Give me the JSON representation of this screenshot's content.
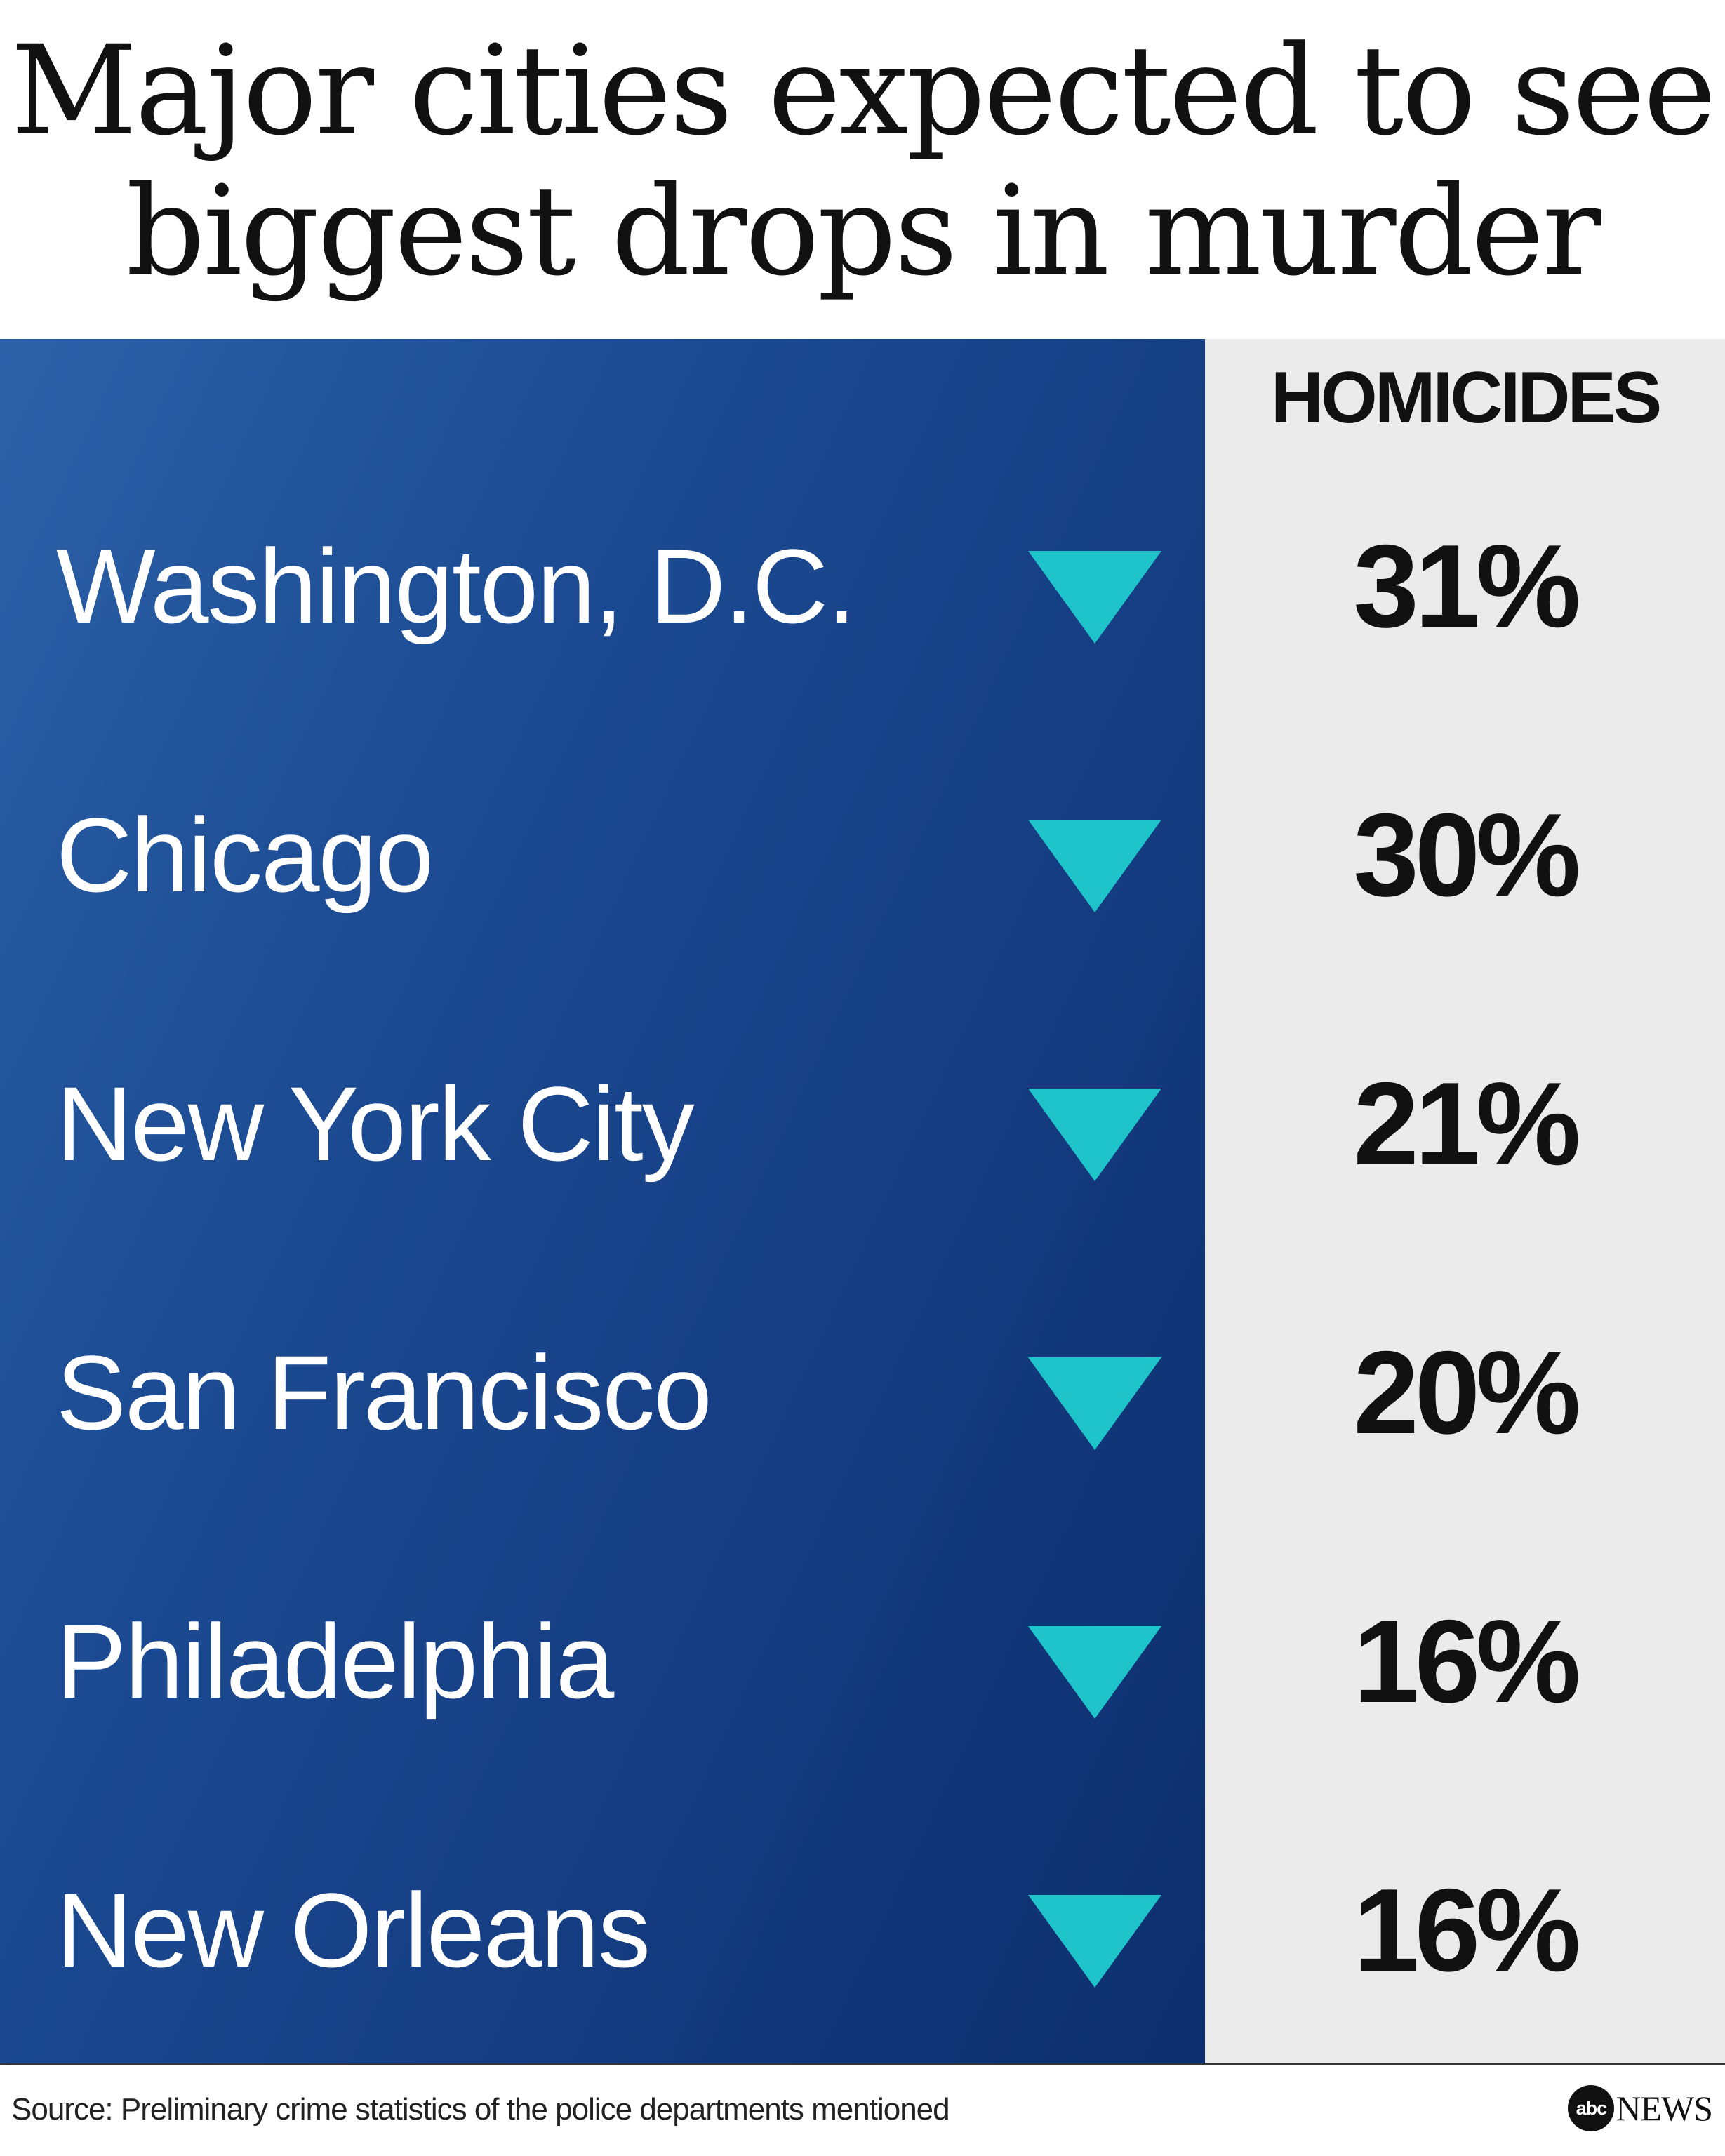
{
  "title_lines": [
    "Major cities expected to see",
    "biggest drops in murder"
  ],
  "column_header": "HOMICIDES",
  "colors": {
    "panel_blue": "#1d4d95",
    "panel_grey": "#ebebeb",
    "arrow_teal": "#1fc4ca",
    "text_dark": "#111111",
    "text_light": "#ffffff"
  },
  "chart_data": {
    "type": "table",
    "title": "Major cities expected to see biggest drops in murder",
    "columns": [
      "",
      "HOMICIDES"
    ],
    "direction": "decrease",
    "indicator_icon": "down-triangle-icon",
    "rows": [
      {
        "city": "Washington, D.C.",
        "change_pct": 31,
        "label": "31%"
      },
      {
        "city": "Chicago",
        "change_pct": 30,
        "label": "30%"
      },
      {
        "city": "New York City",
        "change_pct": 21,
        "label": "21%"
      },
      {
        "city": "San Francisco",
        "change_pct": 20,
        "label": "20%"
      },
      {
        "city": "Philadelphia",
        "change_pct": 16,
        "label": "16%"
      },
      {
        "city": "New Orleans",
        "change_pct": 16,
        "label": "16%"
      }
    ]
  },
  "footer": {
    "source": "Source: Preliminary crime statistics of the police departments mentioned",
    "logo_mark": "abc",
    "logo_word": "NEWS"
  }
}
